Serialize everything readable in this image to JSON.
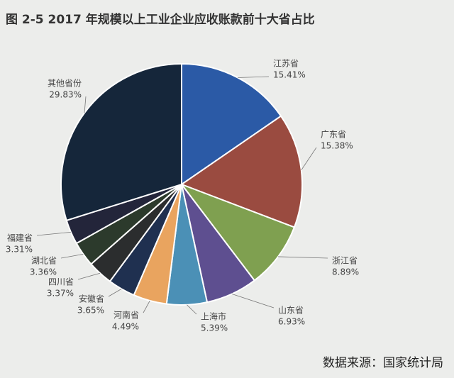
{
  "chart_data": {
    "type": "pie",
    "title": "图 2-5 2017 年规模以上工业企业应收账款前十大省占比",
    "categories": [
      "江苏省",
      "广东省",
      "浙江省",
      "山东省",
      "上海市",
      "河南省",
      "安徽省",
      "四川省",
      "湖北省",
      "福建省",
      "其他省份"
    ],
    "values": [
      15.41,
      15.38,
      8.89,
      6.93,
      5.39,
      4.49,
      3.65,
      3.37,
      3.36,
      3.31,
      29.83
    ],
    "value_labels": [
      "15.41%",
      "15.38%",
      "8.89%",
      "6.93%",
      "5.39%",
      "4.49%",
      "3.65%",
      "3.37%",
      "3.36%",
      "3.31%",
      "29.83%"
    ],
    "colors": [
      "#2b5aa6",
      "#9a4b40",
      "#7fa050",
      "#5e4f90",
      "#4b90b6",
      "#e9a45f",
      "#1f3050",
      "#2b2d2e",
      "#2c3a2c",
      "#23253a",
      "#15263a"
    ],
    "source": "数据来源：国家统计局"
  }
}
